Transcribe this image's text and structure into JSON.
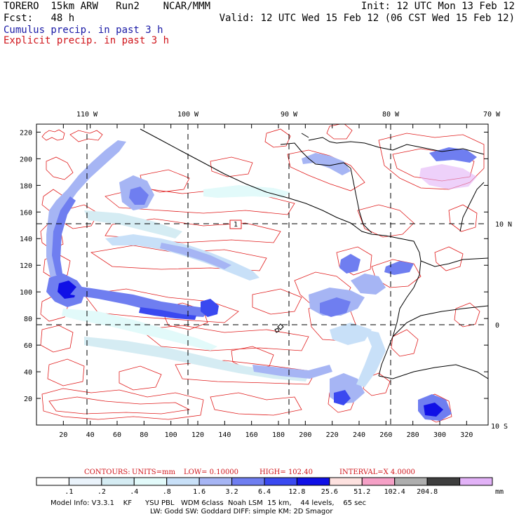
{
  "header": {
    "model": "TORERO",
    "resolution": "15km ARW",
    "run": "Run2",
    "org": "NCAR/MMM",
    "init": "Init: 12 UTC Mon 13 Feb 12",
    "fcst_label": "Fcst:",
    "fcst_value": "48 h",
    "valid": "Valid: 12 UTC Wed 15 Feb 12 (06 CST Wed 15 Feb 12)",
    "cumulus": "Cumulus precip. in past 3 h",
    "explicit": "Explicit precip. in past 3 h"
  },
  "map": {
    "lon_labels": [
      "110 W",
      "100 W",
      "90 W",
      "80 W",
      "70 W"
    ],
    "lat_labels": [
      "10 N",
      "0",
      "10 S"
    ],
    "y_ticks": [
      "220",
      "200",
      "180",
      "160",
      "140",
      "120",
      "100",
      "80",
      "60",
      "40",
      "20"
    ],
    "x_ticks": [
      "20",
      "40",
      "60",
      "80",
      "100",
      "120",
      "140",
      "160",
      "180",
      "200",
      "220",
      "240",
      "260",
      "280",
      "300",
      "320"
    ],
    "box_label": "1"
  },
  "contours": {
    "label": "CONTOURS:",
    "units": "UNITS=mm",
    "low": "LOW= 0.10000",
    "high": "HIGH= 102.40",
    "interval": "INTERVAL=X 4.0000"
  },
  "colorbar": {
    "unit": "mm",
    "labels": [
      ".1",
      ".2",
      ".4",
      ".8",
      "1.6",
      "3.2",
      "6.4",
      "12.8",
      "25.6",
      "51.2",
      "102.4",
      "204.8"
    ],
    "colors": [
      "#ffffff",
      "#eaf3fb",
      "#d5ecf3",
      "#e2fafa",
      "#c8e0f8",
      "#a6b5f4",
      "#6f7ef0",
      "#3a49f0",
      "#1010e6",
      "#fde1df",
      "#f5a0c6",
      "#aeaeae",
      "#3e3e3e",
      "#e2b2f7"
    ]
  },
  "footer": {
    "line1": "Model Info: V3.3.1    KF      YSU PBL   WDM 6class  Noah LSM  15 km,    44 levels,    65 sec",
    "line2": "LW: Godd SW: Goddard DIFF: simple KM: 2D Smagor"
  }
}
